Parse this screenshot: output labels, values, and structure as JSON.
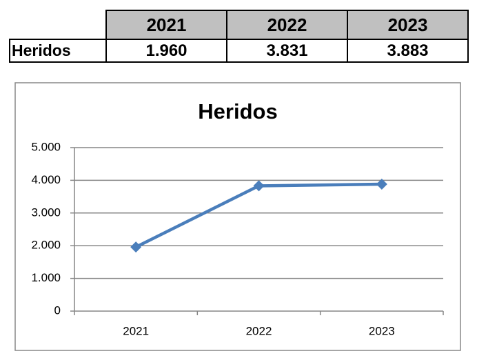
{
  "table": {
    "header": [
      "2021",
      "2022",
      "2023"
    ],
    "rows": [
      [
        "Heridos",
        "1.960",
        "3.831",
        "3.883"
      ]
    ]
  },
  "chart_data": {
    "type": "line",
    "title": "Heridos",
    "categories": [
      "2021",
      "2022",
      "2023"
    ],
    "values": [
      1960,
      3831,
      3883
    ],
    "color": "#4a7ebb",
    "ylim": [
      0,
      5000
    ],
    "yticks": [
      0,
      {
        "value": 1000,
        "label": "1.000"
      },
      {
        "value": 2000,
        "label": "2.000"
      },
      {
        "value": 3000,
        "label": "3.000"
      },
      {
        "value": 4000,
        "label": "4.000"
      },
      {
        "value": 5000,
        "label": "5.000"
      }
    ],
    "grid": true
  }
}
